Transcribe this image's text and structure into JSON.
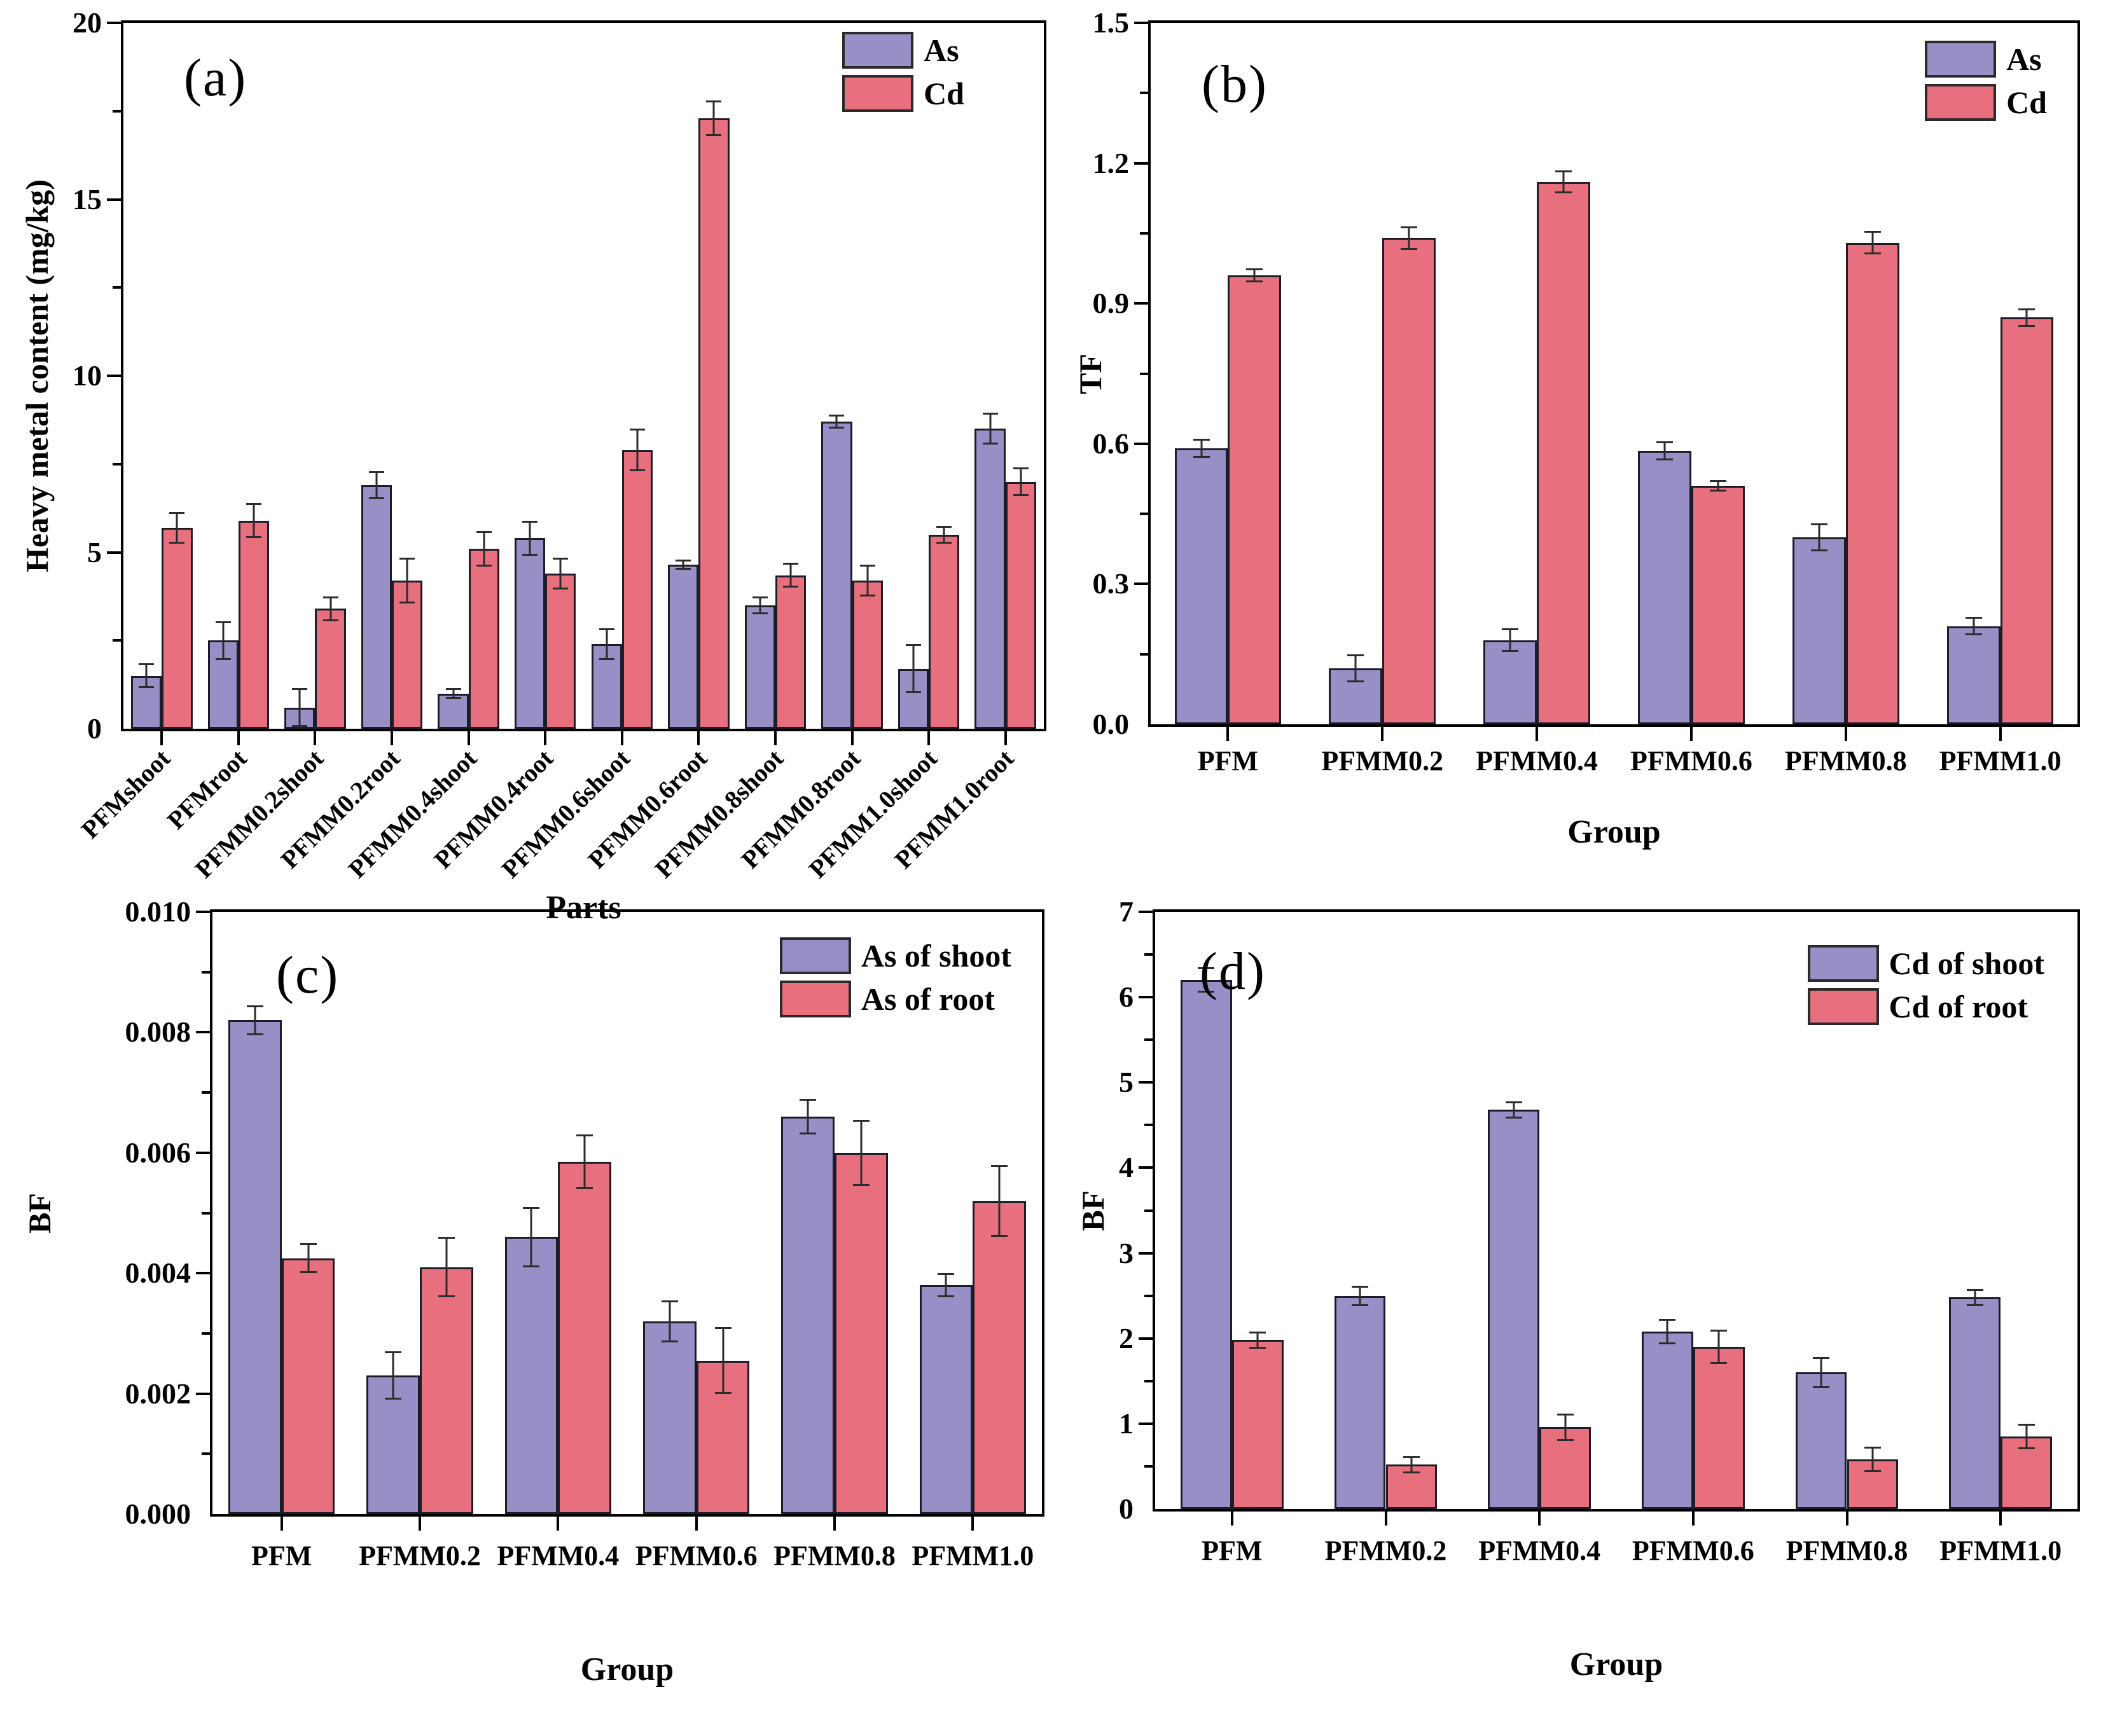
{
  "figure_background": "#ffffff",
  "palette": {
    "as_or_shoot_bar": "#978fc6",
    "cd_or_root_bar": "#e8707e",
    "bar_border": "#1c1c28",
    "error_bar": "#2b2b2b",
    "axis": "#000000"
  },
  "chart_data": [
    {
      "type": "bar",
      "id": "a",
      "title": "(a)",
      "xlabel": "Parts",
      "ylabel": "Heavy metal content (mg/kg)",
      "ylim": [
        0,
        20
      ],
      "ytick_step": 5,
      "yminor_step": 2.5,
      "ytick_decimals": 0,
      "grid": false,
      "legend_position": "top-right",
      "x_labels_rotated": true,
      "categories": [
        "PFMshoot",
        "PFMroot",
        "PFMM0.2shoot",
        "PFMM0.2root",
        "PFMM0.4shoot",
        "PFMM0.4root",
        "PFMM0.6shoot",
        "PFMM0.6root",
        "PFMM0.8shoot",
        "PFMM0.8root",
        "PFMM1.0shoot",
        "PFMM1.0root"
      ],
      "series": [
        {
          "name": "As",
          "color": "#978fc6",
          "values": [
            1.5,
            2.5,
            0.6,
            6.9,
            1.0,
            5.4,
            2.4,
            4.65,
            3.5,
            8.7,
            1.7,
            8.5
          ],
          "errors": [
            0.35,
            0.55,
            0.55,
            0.4,
            0.15,
            0.5,
            0.45,
            0.15,
            0.25,
            0.2,
            0.7,
            0.45
          ]
        },
        {
          "name": "Cd",
          "color": "#e8707e",
          "values": [
            5.7,
            5.9,
            3.4,
            4.2,
            5.1,
            4.4,
            7.9,
            17.3,
            4.35,
            4.2,
            5.5,
            7.0
          ],
          "errors": [
            0.45,
            0.5,
            0.35,
            0.65,
            0.5,
            0.45,
            0.6,
            0.5,
            0.35,
            0.45,
            0.25,
            0.4
          ]
        }
      ]
    },
    {
      "type": "bar",
      "id": "b",
      "title": "(b)",
      "xlabel": "Group",
      "ylabel": "TF",
      "ylim": [
        0,
        1.5
      ],
      "ytick_step": 0.3,
      "yminor_step": 0.15,
      "ytick_decimals": 1,
      "grid": false,
      "legend_position": "top-right",
      "x_labels_rotated": false,
      "categories": [
        "PFM",
        "PFMM0.2",
        "PFMM0.4",
        "PFMM0.6",
        "PFMM0.8",
        "PFMM1.0"
      ],
      "series": [
        {
          "name": "As",
          "color": "#978fc6",
          "values": [
            0.59,
            0.12,
            0.18,
            0.585,
            0.4,
            0.21
          ],
          "errors": [
            0.02,
            0.03,
            0.025,
            0.02,
            0.03,
            0.02
          ]
        },
        {
          "name": "Cd",
          "color": "#e8707e",
          "values": [
            0.96,
            1.04,
            1.16,
            0.51,
            1.03,
            0.87
          ],
          "errors": [
            0.015,
            0.025,
            0.025,
            0.012,
            0.025,
            0.02
          ]
        }
      ]
    },
    {
      "type": "bar",
      "id": "c",
      "title": "(c)",
      "xlabel": "Group",
      "ylabel": "BF",
      "ylim": [
        0,
        0.01
      ],
      "ytick_step": 0.002,
      "yminor_step": 0.001,
      "ytick_decimals": 3,
      "grid": false,
      "legend_position": "top-right",
      "x_labels_rotated": false,
      "categories": [
        "PFM",
        "PFMM0.2",
        "PFMM0.4",
        "PFMM0.6",
        "PFMM0.8",
        "PFMM1.0"
      ],
      "series": [
        {
          "name": "As of shoot",
          "color": "#978fc6",
          "values": [
            0.0082,
            0.0023,
            0.0046,
            0.0032,
            0.0066,
            0.0038
          ],
          "errors": [
            0.00025,
            0.0004,
            0.0005,
            0.00035,
            0.0003,
            0.0002
          ]
        },
        {
          "name": "As of root",
          "color": "#e8707e",
          "values": [
            0.00425,
            0.0041,
            0.00585,
            0.00255,
            0.006,
            0.0052
          ],
          "errors": [
            0.00025,
            0.0005,
            0.00045,
            0.00055,
            0.00055,
            0.0006
          ]
        }
      ]
    },
    {
      "type": "bar",
      "id": "d",
      "title": "(d)",
      "xlabel": "Group",
      "ylabel": "BF",
      "ylim": [
        0,
        7
      ],
      "ytick_step": 1,
      "yminor_step": 0.5,
      "ytick_decimals": 0,
      "grid": false,
      "legend_position": "top-right",
      "x_labels_rotated": false,
      "categories": [
        "PFM",
        "PFMM0.2",
        "PFMM0.4",
        "PFMM0.6",
        "PFMM0.8",
        "PFMM1.0"
      ],
      "series": [
        {
          "name": "Cd of shoot",
          "color": "#978fc6",
          "values": [
            6.2,
            2.5,
            4.68,
            2.08,
            1.6,
            2.48
          ],
          "errors": [
            0.15,
            0.12,
            0.1,
            0.15,
            0.18,
            0.1
          ]
        },
        {
          "name": "Cd of root",
          "color": "#e8707e",
          "values": [
            1.98,
            0.52,
            0.96,
            1.9,
            0.58,
            0.85
          ],
          "errors": [
            0.1,
            0.1,
            0.16,
            0.2,
            0.15,
            0.15
          ]
        }
      ]
    }
  ]
}
